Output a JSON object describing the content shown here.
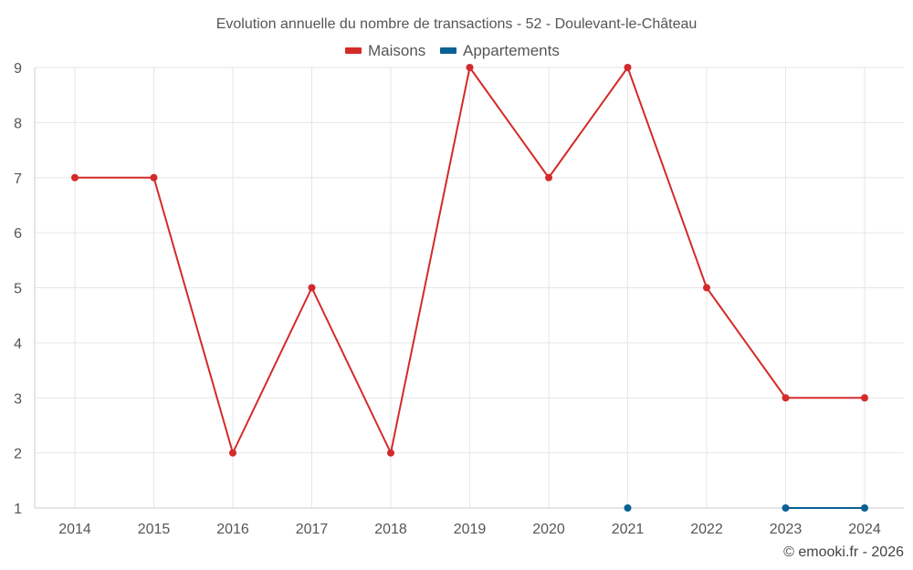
{
  "chart_data": {
    "type": "line",
    "title": "Evolution annuelle du nombre de transactions - 52 - Doulevant-le-Château",
    "x": [
      "2014",
      "2015",
      "2016",
      "2017",
      "2018",
      "2019",
      "2020",
      "2021",
      "2022",
      "2023",
      "2024"
    ],
    "ylim": [
      1,
      9
    ],
    "yticks": [
      1,
      2,
      3,
      4,
      5,
      6,
      7,
      8,
      9
    ],
    "grid": true,
    "legend_position": "top-center",
    "series": [
      {
        "name": "Maisons",
        "color": "#d42a2a",
        "values": [
          7,
          7,
          2,
          5,
          2,
          9,
          7,
          9,
          5,
          3,
          3
        ]
      },
      {
        "name": "Appartements",
        "color": "#0a6195",
        "values": [
          null,
          null,
          null,
          null,
          null,
          null,
          null,
          1,
          null,
          1,
          1
        ]
      }
    ]
  },
  "credit": "© emooki.fr - 2026"
}
